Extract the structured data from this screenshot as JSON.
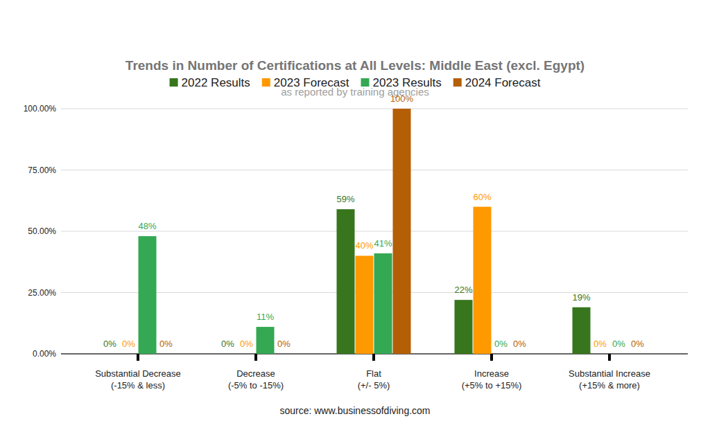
{
  "chart_data": {
    "type": "bar",
    "title": "Trends in Number of Certifications at All Levels: Middle East (excl. Egypt)",
    "subtitle": "as reported by training agencies",
    "categories": [
      "Substantial Decrease (-15% & less)",
      "Decrease (-5% to -15%)",
      "Flat (+/- 5%)",
      "Increase (+5% to +15%)",
      "Substantial Increase (+15% & more)"
    ],
    "series": [
      {
        "name": "2022 Results",
        "color": "#38761d",
        "values": [
          0,
          0,
          59,
          22,
          19
        ],
        "value_labels": [
          "0%",
          "0%",
          "59%",
          "22%",
          "19%"
        ]
      },
      {
        "name": "2023 Forecast",
        "color": "#ff9900",
        "values": [
          0,
          0,
          40,
          60,
          0
        ],
        "value_labels": [
          "0%",
          "0%",
          "40%",
          "60%",
          "0%"
        ]
      },
      {
        "name": "2023 Results",
        "color": "#34a853",
        "values": [
          48,
          11,
          41,
          0,
          0
        ],
        "value_labels": [
          "48%",
          "11%",
          "41%",
          "0%",
          "0%"
        ]
      },
      {
        "name": "2024 Forecast",
        "color": "#b45f06",
        "values": [
          0,
          0,
          100,
          0,
          0
        ],
        "value_labels": [
          "0%",
          "0%",
          "100%",
          "0%",
          "0%"
        ]
      }
    ],
    "ylim": [
      0,
      100
    ],
    "yticks": [
      {
        "value": 0,
        "label": "0.00%"
      },
      {
        "value": 25,
        "label": "25.00%"
      },
      {
        "value": 50,
        "label": "50.00%"
      },
      {
        "value": 75,
        "label": "75.00%"
      },
      {
        "value": 100,
        "label": "100.00%"
      }
    ],
    "grid": true,
    "legend": "top",
    "data_labels": true,
    "annotations": [
      "source: www.businessofdiving.com"
    ]
  }
}
